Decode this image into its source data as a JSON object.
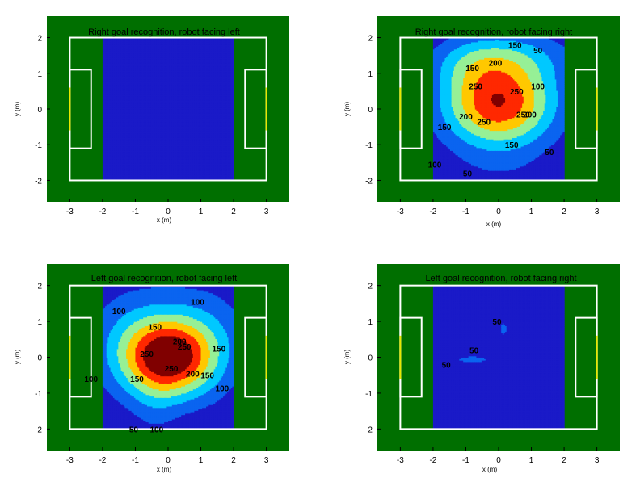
{
  "chart_data": [
    {
      "type": "heatmap",
      "title": "Right goal recognition, robot facing left",
      "xlabel": "x (m)",
      "ylabel": "y (m)",
      "xlim": [
        -3.7,
        3.7
      ],
      "ylim": [
        -2.6,
        2.6
      ],
      "xticks": [
        -3,
        -2,
        -1,
        0,
        1,
        2,
        3
      ],
      "yticks": [
        -2,
        -1,
        0,
        1,
        2
      ],
      "contour_levels": [
        50,
        100,
        150,
        200,
        250,
        300
      ],
      "peaks": [],
      "contour_labels": []
    },
    {
      "type": "heatmap",
      "title": "Right goal recognition, robot facing right",
      "xlabel": "x (m)",
      "ylabel": "y (m)",
      "xlim": [
        -3.7,
        3.7
      ],
      "ylim": [
        -2.6,
        2.6
      ],
      "xticks": [
        -3,
        -2,
        -1,
        0,
        1,
        2,
        3
      ],
      "yticks": [
        -2,
        -1,
        0,
        1,
        2
      ],
      "contour_levels": [
        50,
        100,
        150,
        200,
        250,
        300
      ],
      "peaks": [
        {
          "x": 0.0,
          "y": 0.2,
          "amp": 300,
          "sx": 1.2,
          "sy": 0.9
        },
        {
          "x": 0.4,
          "y": 1.5,
          "amp": 70,
          "sx": 1.4,
          "sy": 0.5
        },
        {
          "x": -1.0,
          "y": 1.3,
          "amp": 40,
          "sx": 0.8,
          "sy": 0.5
        },
        {
          "x": 0.0,
          "y": -1.8,
          "amp": 20,
          "sx": 1.5,
          "sy": 0.4
        }
      ],
      "contour_labels": [
        {
          "text": "150",
          "x": -0.8,
          "y": 1.15
        },
        {
          "text": "200",
          "x": -0.1,
          "y": 1.3
        },
        {
          "text": "150",
          "x": 0.5,
          "y": 1.8
        },
        {
          "text": "50",
          "x": 1.2,
          "y": 1.65
        },
        {
          "text": "100",
          "x": 1.2,
          "y": 0.65
        },
        {
          "text": "150",
          "x": -1.65,
          "y": -0.5
        },
        {
          "text": "200",
          "x": -1.0,
          "y": -0.2
        },
        {
          "text": "250",
          "x": -0.7,
          "y": 0.65
        },
        {
          "text": "250",
          "x": 0.55,
          "y": 0.5
        },
        {
          "text": "250",
          "x": -0.45,
          "y": -0.35
        },
        {
          "text": "250",
          "x": 0.75,
          "y": -0.15
        },
        {
          "text": "150",
          "x": 0.4,
          "y": -1.0
        },
        {
          "text": "200",
          "x": 0.95,
          "y": -0.15
        },
        {
          "text": "50",
          "x": 1.55,
          "y": -1.2
        },
        {
          "text": "100",
          "x": -1.95,
          "y": -1.55
        },
        {
          "text": "50",
          "x": -0.95,
          "y": -1.8
        }
      ]
    },
    {
      "type": "heatmap",
      "title": "Left goal recognition, robot facing left",
      "xlabel": "x (m)",
      "ylabel": "y (m)",
      "xlim": [
        -3.7,
        3.7
      ],
      "ylim": [
        -2.6,
        2.6
      ],
      "xticks": [
        -3,
        -2,
        -1,
        0,
        1,
        2,
        3
      ],
      "yticks": [
        -2,
        -1,
        0,
        1,
        2
      ],
      "contour_levels": [
        50,
        100,
        150,
        200,
        250,
        300
      ],
      "peaks": [
        {
          "x": 0.0,
          "y": 0.0,
          "amp": 300,
          "sx": 0.9,
          "sy": 0.75
        },
        {
          "x": 0.0,
          "y": 0.6,
          "amp": 70,
          "sx": 1.8,
          "sy": 1.2
        },
        {
          "x": -1.3,
          "y": 0.2,
          "amp": 40,
          "sx": 0.7,
          "sy": 1.0
        },
        {
          "x": 1.3,
          "y": 0.2,
          "amp": 40,
          "sx": 0.7,
          "sy": 1.0
        },
        {
          "x": -0.4,
          "y": -1.5,
          "amp": 30,
          "sx": 0.5,
          "sy": 0.7
        }
      ],
      "contour_labels": [
        {
          "text": "100",
          "x": -1.5,
          "y": 1.3
        },
        {
          "text": "100",
          "x": 0.9,
          "y": 1.55
        },
        {
          "text": "150",
          "x": -0.4,
          "y": 0.85
        },
        {
          "text": "150",
          "x": 1.55,
          "y": 0.25
        },
        {
          "text": "200",
          "x": 0.35,
          "y": 0.45
        },
        {
          "text": "250",
          "x": -0.65,
          "y": 0.1
        },
        {
          "text": "250",
          "x": 0.5,
          "y": 0.3
        },
        {
          "text": "250",
          "x": 0.1,
          "y": -0.3
        },
        {
          "text": "200",
          "x": 0.75,
          "y": -0.45
        },
        {
          "text": "150",
          "x": -0.95,
          "y": -0.6
        },
        {
          "text": "150",
          "x": 1.2,
          "y": -0.5
        },
        {
          "text": "100",
          "x": -2.35,
          "y": -0.6
        },
        {
          "text": "100",
          "x": 1.65,
          "y": -0.85
        },
        {
          "text": "50",
          "x": -1.05,
          "y": -2.0
        },
        {
          "text": "100",
          "x": -0.35,
          "y": -2.0
        }
      ]
    },
    {
      "type": "heatmap",
      "title": "Left goal recognition, robot facing right",
      "xlabel": "x (m)",
      "ylabel": "y (m)",
      "xlim": [
        -3.7,
        3.7
      ],
      "ylim": [
        -2.6,
        2.6
      ],
      "xticks": [
        -3,
        -2,
        -1,
        0,
        1,
        2,
        3
      ],
      "yticks": [
        -2,
        -1,
        0,
        1,
        2
      ],
      "contour_levels": [
        50,
        100,
        150,
        200,
        250,
        300
      ],
      "peaks": [
        {
          "x": -0.8,
          "y": -0.05,
          "amp": 65,
          "sx": 0.55,
          "sy": 0.1
        },
        {
          "x": 0.15,
          "y": 0.8,
          "amp": 62,
          "sx": 0.12,
          "sy": 0.22
        }
      ],
      "contour_labels": [
        {
          "text": "50",
          "x": -0.75,
          "y": 0.2
        },
        {
          "text": "50",
          "x": -1.6,
          "y": -0.2
        },
        {
          "text": "50",
          "x": -0.05,
          "y": 1.0
        }
      ]
    }
  ],
  "colors": {
    "field_green": "#006f00",
    "line_white": "#ffffff",
    "goal_yellow": "#e8e800",
    "level_0": "#1a1ac8",
    "level_50": "#0a64f0",
    "level_100": "#00c8ff",
    "level_150": "#96f096",
    "level_200": "#ffc800",
    "level_250": "#ff2800",
    "level_300": "#800000"
  }
}
